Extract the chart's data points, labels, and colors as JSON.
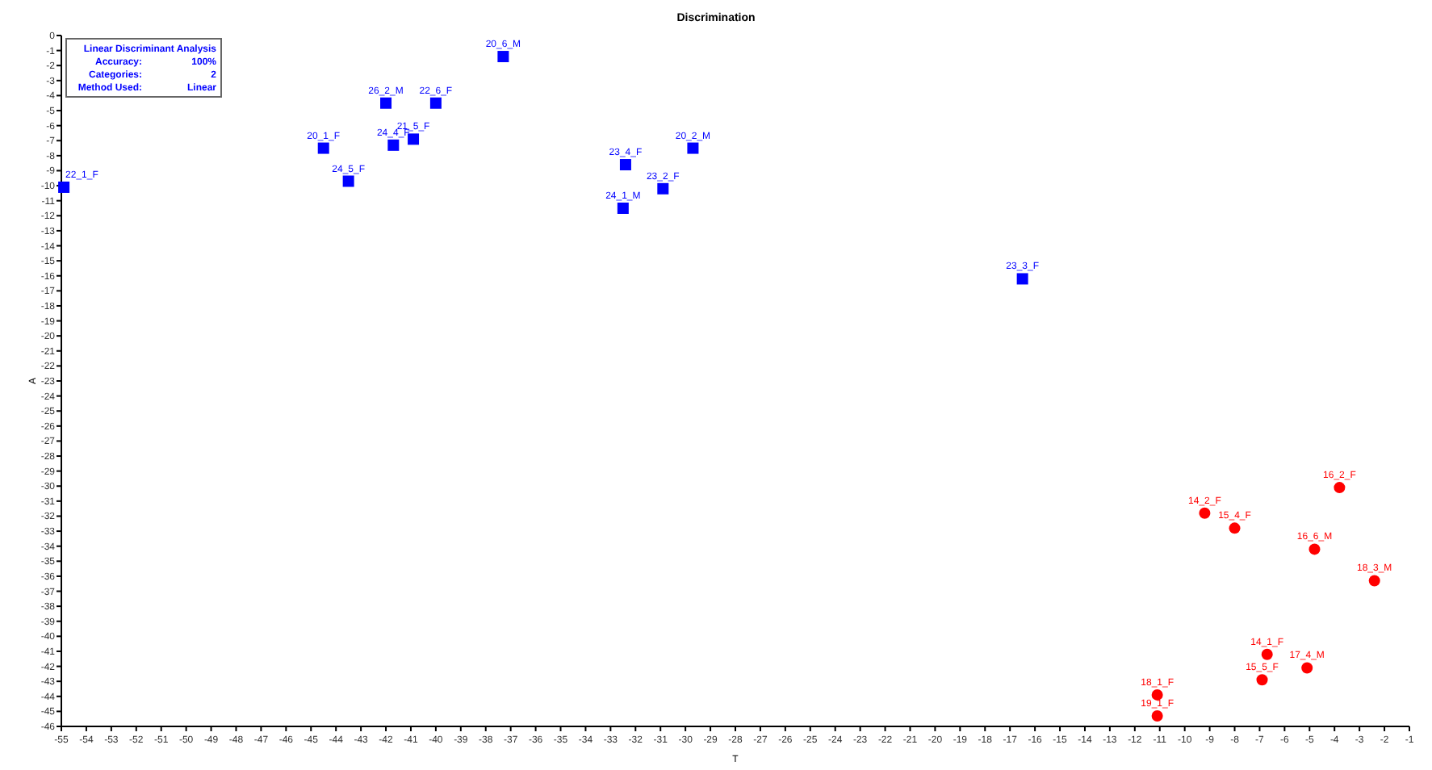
{
  "chart_data": {
    "type": "scatter",
    "title": "Discrimination",
    "xlabel": "T",
    "ylabel": "A",
    "xlim": [
      -55,
      -1
    ],
    "ylim": [
      -46,
      0
    ],
    "xticks": [
      -55,
      -54,
      -53,
      -52,
      -51,
      -50,
      -49,
      -48,
      -47,
      -46,
      -45,
      -44,
      -43,
      -42,
      -41,
      -40,
      -39,
      -38,
      -37,
      -36,
      -35,
      -34,
      -33,
      -32,
      -31,
      -30,
      -29,
      -28,
      -27,
      -26,
      -25,
      -24,
      -23,
      -22,
      -21,
      -20,
      -19,
      -18,
      -17,
      -16,
      -15,
      -14,
      -13,
      -12,
      -11,
      -10,
      -9,
      -8,
      -7,
      -6,
      -5,
      -4,
      -3,
      -2,
      -1
    ],
    "yticks": [
      0,
      -1,
      -2,
      -3,
      -4,
      -5,
      -6,
      -7,
      -8,
      -9,
      -10,
      -11,
      -12,
      -13,
      -14,
      -15,
      -16,
      -17,
      -18,
      -19,
      -20,
      -21,
      -22,
      -23,
      -24,
      -25,
      -26,
      -27,
      -28,
      -29,
      -30,
      -31,
      -32,
      -33,
      -34,
      -35,
      -36,
      -37,
      -38,
      -39,
      -40,
      -41,
      -42,
      -43,
      -44,
      -45,
      -46
    ],
    "grid": false,
    "series": [
      {
        "color": "#0000ff",
        "marker": "square",
        "x": [
          -54.9,
          -44.5,
          -43.5,
          -42.0,
          -40.0,
          -41.7,
          -40.9,
          -37.3,
          -32.4,
          -29.7,
          -30.9,
          -32.5,
          -16.5
        ],
        "values": [
          -10.1,
          -7.5,
          -9.7,
          -4.5,
          -4.5,
          -7.3,
          -6.9,
          -1.4,
          -8.6,
          -7.5,
          -10.2,
          -11.5,
          -16.2
        ]
      },
      {
        "color": "#ff0000",
        "marker": "circle",
        "x": [
          -3.8,
          -9.2,
          -8.0,
          -4.8,
          -2.4,
          -6.7,
          -5.1,
          -6.9,
          -11.1,
          -11.1
        ],
        "values": [
          -30.1,
          -31.8,
          -32.8,
          -34.2,
          -36.3,
          -41.2,
          -42.1,
          -42.9,
          -43.9,
          -45.3
        ]
      }
    ],
    "annotations": [
      "Linear Discriminant Analysis",
      "Accuracy:",
      "100%",
      "Categories:",
      "2",
      "Method Used:",
      "Linear",
      {
        "text": "22_1_F",
        "x": -54.9,
        "y": -10.1
      },
      {
        "text": "20_1_F",
        "x": -44.5,
        "y": -7.5
      },
      {
        "text": "24_5_F",
        "x": -43.5,
        "y": -9.7
      },
      {
        "text": "26_2_M",
        "x": -42.0,
        "y": -4.5
      },
      {
        "text": "22_6_F",
        "x": -40.0,
        "y": -4.5
      },
      {
        "text": "24_4_F",
        "x": -41.7,
        "y": -7.3
      },
      {
        "text": "21_5_F",
        "x": -40.9,
        "y": -6.9
      },
      {
        "text": "20_6_M",
        "x": -37.3,
        "y": -1.4
      },
      {
        "text": "23_4_F",
        "x": -32.4,
        "y": -8.6
      },
      {
        "text": "20_2_M",
        "x": -29.7,
        "y": -7.5
      },
      {
        "text": "23_2_F",
        "x": -30.9,
        "y": -10.2
      },
      {
        "text": "24_1_M",
        "x": -32.5,
        "y": -11.5
      },
      {
        "text": "23_3_F",
        "x": -16.5,
        "y": -16.2
      },
      {
        "text": "16_2_F",
        "x": -3.8,
        "y": -30.1
      },
      {
        "text": "14_2_F",
        "x": -9.2,
        "y": -31.8
      },
      {
        "text": "15_4_F",
        "x": -8.0,
        "y": -32.8
      },
      {
        "text": "16_6_M",
        "x": -4.8,
        "y": -34.2
      },
      {
        "text": "18_3_M",
        "x": -2.4,
        "y": -36.3
      },
      {
        "text": "14_1_F",
        "x": -6.7,
        "y": -41.2
      },
      {
        "text": "17_4_M",
        "x": -5.1,
        "y": -42.1
      },
      {
        "text": "15_5_F",
        "x": -6.9,
        "y": -42.9
      },
      {
        "text": "18_1_F",
        "x": -11.1,
        "y": -43.9
      },
      {
        "text": "19_1_F",
        "x": -11.1,
        "y": -45.3
      }
    ]
  }
}
